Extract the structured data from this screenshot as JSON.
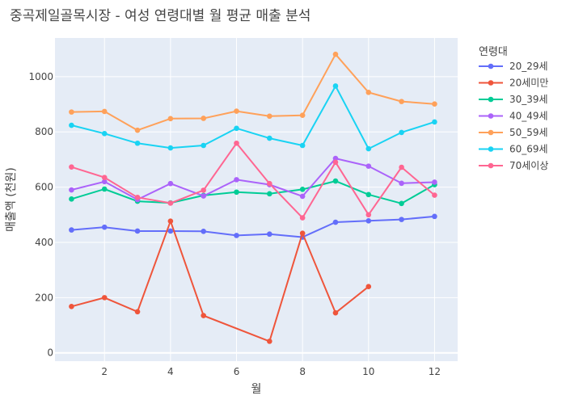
{
  "chart_data": {
    "type": "line",
    "title": "중곡제일골목시장 - 여성 연령대별 월 평균 매출 분석",
    "xlabel": "월",
    "ylabel": "매출액 (천원)",
    "xlim": [
      0.5,
      12.7
    ],
    "ylim": [
      -30,
      1140
    ],
    "xticks": [
      2,
      4,
      6,
      8,
      10,
      12
    ],
    "yticks": [
      0,
      200,
      400,
      600,
      800,
      1000
    ],
    "legend_title": "연령대",
    "legend_position": "right",
    "grid": true,
    "plot_bgcolor": "#E5ECF6",
    "series": [
      {
        "name": "20_29세",
        "color": "#636EFA",
        "x": [
          1,
          2,
          3,
          4,
          5,
          6,
          7,
          8,
          9,
          10,
          11,
          12
        ],
        "y": [
          445,
          455,
          441,
          441,
          440,
          425,
          430,
          419,
          473,
          478,
          483,
          494
        ]
      },
      {
        "name": "20세미만",
        "color": "#EF553B",
        "x": [
          1,
          2,
          3,
          4,
          5,
          7,
          8,
          9,
          10
        ],
        "y": [
          168,
          200,
          149,
          477,
          135,
          42,
          433,
          145,
          240
        ]
      },
      {
        "name": "30_39세",
        "color": "#00CC96",
        "x": [
          1,
          2,
          3,
          4,
          5,
          6,
          7,
          8,
          9,
          10,
          11,
          12
        ],
        "y": [
          557,
          593,
          549,
          543,
          570,
          582,
          576,
          592,
          622,
          573,
          541,
          609
        ]
      },
      {
        "name": "40_49세",
        "color": "#AB63FA",
        "x": [
          1,
          2,
          3,
          4,
          5,
          6,
          7,
          8,
          9,
          10,
          11,
          12
        ],
        "y": [
          590,
          620,
          555,
          613,
          568,
          627,
          609,
          567,
          704,
          676,
          614,
          618
        ]
      },
      {
        "name": "50_59세",
        "color": "#FFA15A",
        "x": [
          1,
          2,
          3,
          4,
          5,
          6,
          7,
          8,
          9,
          10,
          11,
          12
        ],
        "y": [
          872,
          874,
          806,
          848,
          849,
          875,
          857,
          860,
          1081,
          943,
          910,
          901
        ]
      },
      {
        "name": "60_69세",
        "color": "#19D3F3",
        "x": [
          1,
          2,
          3,
          4,
          5,
          6,
          7,
          8,
          9,
          10,
          11,
          12
        ],
        "y": [
          824,
          794,
          759,
          742,
          751,
          813,
          777,
          751,
          966,
          739,
          798,
          836
        ]
      },
      {
        "name": "70세이상",
        "color": "#FF6692",
        "x": [
          1,
          2,
          3,
          4,
          5,
          6,
          7,
          8,
          9,
          10,
          11,
          12
        ],
        "y": [
          673,
          635,
          563,
          542,
          589,
          759,
          613,
          489,
          690,
          500,
          672,
          571
        ]
      }
    ]
  }
}
